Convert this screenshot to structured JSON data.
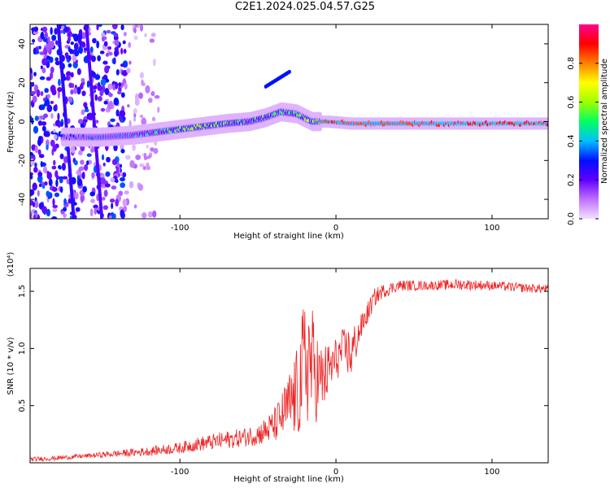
{
  "title": "C2E1.2024.025.04.57.G25",
  "chart_data": [
    {
      "type": "heatmap",
      "xlabel": "Height of straight line (km)",
      "ylabel": "Frequency (Hz)",
      "xlim": [
        -196,
        136
      ],
      "ylim": [
        -50,
        50
      ],
      "xticks": [
        -100,
        0,
        100
      ],
      "xtick_labels": [
        "-100",
        "0",
        "100"
      ],
      "yticks": [
        -40,
        -20,
        0,
        20,
        40
      ],
      "ytick_labels": [
        "-40",
        "-20",
        "0",
        "20",
        "40"
      ],
      "colorbar": {
        "label": "Normalized spectral amplitude",
        "range": [
          0,
          1
        ],
        "ticks": [
          0.0,
          0.2,
          0.4,
          0.6,
          0.8
        ],
        "tick_labels": [
          "0.0",
          "0.2",
          "0.4",
          "0.6",
          "0.8"
        ],
        "colors": [
          "#f4e0ff",
          "#c070ff",
          "#6000ff",
          "#0010ff",
          "#00c0ff",
          "#00ff60",
          "#a0ff00",
          "#ffff00",
          "#ff8000",
          "#ff0000",
          "#ff0090"
        ]
      },
      "ridge": {
        "x": [
          -170,
          -150,
          -130,
          -110,
          -90,
          -70,
          -55,
          -45,
          -35,
          -25,
          -15,
          -5,
          10,
          40,
          80,
          136
        ],
        "y": [
          -8,
          -8,
          -7,
          -5,
          -3,
          -1,
          0,
          2,
          5,
          4,
          0,
          0,
          -1,
          -1,
          -1,
          -1
        ],
        "amplitude": [
          0.3,
          0.35,
          0.4,
          0.5,
          0.6,
          0.55,
          0.5,
          0.55,
          0.5,
          0.5,
          0.7,
          0.9,
          0.85,
          0.85,
          0.9,
          0.9
        ]
      }
    },
    {
      "type": "line",
      "xlabel": "Height of straight line (km)",
      "ylabel": "SNR (10 * v/v)",
      "y_multiplier": "(x10⁴)",
      "xlim": [
        -196,
        136
      ],
      "ylim": [
        0,
        1.7
      ],
      "xticks": [
        -100,
        0,
        100
      ],
      "xtick_labels": [
        "-100",
        "0",
        "100"
      ],
      "yticks": [
        0.5,
        1.0,
        1.5
      ],
      "ytick_labels": [
        "0.5",
        "1.0",
        "1.5"
      ],
      "color": "#ee2222",
      "series": [
        {
          "x": [
            -196,
            -180,
            -160,
            -140,
            -120,
            -100,
            -90,
            -80,
            -70,
            -60,
            -50,
            -45,
            -40,
            -35,
            -30,
            -25,
            -22,
            -18,
            -15,
            -10,
            -5,
            0,
            5,
            10,
            15,
            20,
            25,
            30,
            40,
            60,
            80,
            100,
            120,
            136
          ],
          "y": [
            0.03,
            0.04,
            0.06,
            0.08,
            0.1,
            0.13,
            0.16,
            0.18,
            0.2,
            0.22,
            0.25,
            0.28,
            0.32,
            0.4,
            0.5,
            0.6,
            0.75,
            0.95,
            0.85,
            0.7,
            0.8,
            0.9,
            1.0,
            0.95,
            1.15,
            1.3,
            1.45,
            1.5,
            1.55,
            1.55,
            1.56,
            1.55,
            1.53,
            1.52
          ],
          "noise": [
            0.02,
            0.02,
            0.02,
            0.03,
            0.04,
            0.05,
            0.06,
            0.07,
            0.08,
            0.08,
            0.1,
            0.12,
            0.15,
            0.2,
            0.3,
            0.4,
            0.55,
            0.65,
            0.5,
            0.35,
            0.25,
            0.2,
            0.18,
            0.25,
            0.12,
            0.1,
            0.08,
            0.06,
            0.05,
            0.04,
            0.05,
            0.04,
            0.04,
            0.04
          ]
        }
      ]
    }
  ]
}
